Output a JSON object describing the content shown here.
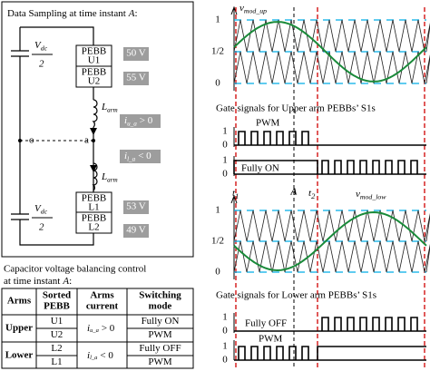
{
  "sampling_box": {
    "title": {
      "text": "Data Sampling at time instant",
      "instant": "A",
      "end": ":"
    },
    "dc_top": {
      "numerator": {
        "base": "V",
        "sub": "dc"
      },
      "denominator": "2"
    },
    "dc_bottom": {
      "numerator": {
        "base": "V",
        "sub": "dc"
      },
      "denominator": "2"
    },
    "node_o": "o",
    "node_a": "a",
    "upper_arm": {
      "pebbs": [
        {
          "line1": "PEBB",
          "line2": "U1",
          "voltage": "50 V"
        },
        {
          "line1": "PEBB",
          "line2": "U2",
          "voltage": "55 V"
        }
      ],
      "inductor": {
        "base": "L",
        "sub": "arm"
      },
      "current": {
        "base": "i",
        "sub": "u_a",
        "rest": "> 0"
      }
    },
    "lower_arm": {
      "pebbs": [
        {
          "line1": "PEBB",
          "line2": "L1",
          "voltage": "53 V"
        },
        {
          "line1": "PEBB",
          "line2": "L2",
          "voltage": "49 V"
        }
      ],
      "inductor": {
        "base": "L",
        "sub": "arm"
      },
      "current": {
        "base": "i",
        "sub": "l_a",
        "rest": "< 0"
      }
    }
  },
  "balancing": {
    "caption": {
      "line1": "Capacitor voltage balancing control",
      "line2": "at time instant",
      "instant": "A",
      "end": ":"
    },
    "table": {
      "headers": [
        [
          "Arms"
        ],
        [
          "Sorted",
          "PEBB"
        ],
        [
          "Arms",
          "current"
        ],
        [
          "Switching",
          "mode"
        ]
      ],
      "groups": [
        {
          "arm": "Upper",
          "current": {
            "base": "i",
            "sub": "u_a",
            "rest": "> 0"
          },
          "rows": [
            {
              "pebb": "U1",
              "mode": "Fully ON"
            },
            {
              "pebb": "U2",
              "mode": "PWM"
            }
          ]
        },
        {
          "arm": "Lower",
          "current": {
            "base": "i",
            "sub": "l_a",
            "rest": "< 0"
          },
          "rows": [
            {
              "pebb": "L2",
              "mode": "Fully OFF"
            },
            {
              "pebb": "L1",
              "mode": "PWM"
            }
          ]
        }
      ]
    }
  },
  "waveforms": {
    "upper_mod": {
      "label": {
        "base": "v",
        "sub": "mod_up"
      },
      "levels": [
        "1",
        "1/2",
        "0"
      ]
    },
    "upper_gates": {
      "title": "Gate signals for Upper arm PEBBs’ S1s",
      "gate1": {
        "levels": [
          "1",
          "0"
        ],
        "label": "PWM"
      },
      "gate2": {
        "levels": [
          "1",
          "0"
        ],
        "label": "Fully ON"
      }
    },
    "time_marks": {
      "t1": {
        "base": "t",
        "sub": "1"
      },
      "instant": "A",
      "t2": {
        "base": "t",
        "sub": "2"
      }
    },
    "lower_mod": {
      "label": {
        "base": "v",
        "sub": "mod_low"
      },
      "levels": [
        "1",
        "1/2",
        "0"
      ]
    },
    "lower_gates": {
      "title": "Gate signals for Lower arm PEBBs’ S1s",
      "gate1": {
        "levels": [
          "1",
          "0"
        ],
        "label": "Fully OFF"
      },
      "gate2": {
        "levels": [
          "1",
          "0"
        ],
        "label": "PWM"
      }
    }
  }
}
